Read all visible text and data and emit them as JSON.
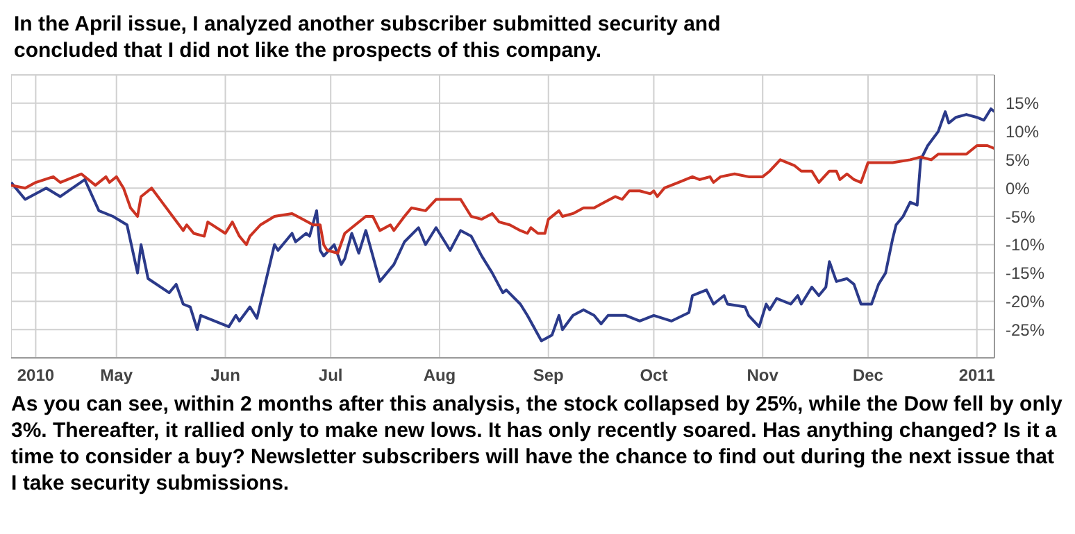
{
  "chart_data": {
    "type": "line",
    "title": "In the April issue, I analyzed another subscriber submitted security and concluded that I did not like the prospects of this company.",
    "annotations": [
      "As you can see, within 2 months after this analysis, the stock collapsed by 25%, while the Dow fell by only 3%. Thereafter, it rallied only to make new lows. It has only recently soared. Has anything changed? Is it a time to consider a buy? Newsletter subscribers will have the chance to find out during the next issue that I take security submissions."
    ],
    "series": [
      {
        "color": "#2b3a8a",
        "x": [
          "2010-04-01",
          "2010-04-05",
          "2010-04-11",
          "2010-04-15",
          "2010-04-22",
          "2010-04-26",
          "2010-04-30",
          "2010-05-04",
          "2010-05-07",
          "2010-05-08",
          "2010-05-10",
          "2010-05-16",
          "2010-05-18",
          "2010-05-20",
          "2010-05-22",
          "2010-05-24",
          "2010-05-25",
          "2010-06-02",
          "2010-06-04",
          "2010-06-05",
          "2010-06-08",
          "2010-06-10",
          "2010-06-15",
          "2010-06-16",
          "2010-06-20",
          "2010-06-21",
          "2010-06-24",
          "2010-06-25",
          "2010-06-27",
          "2010-06-28",
          "2010-06-29",
          "2010-07-02",
          "2010-07-04",
          "2010-07-05",
          "2010-07-07",
          "2010-07-09",
          "2010-07-11",
          "2010-07-15",
          "2010-07-19",
          "2010-07-22",
          "2010-07-26",
          "2010-07-28",
          "2010-07-31",
          "2010-08-04",
          "2010-08-07",
          "2010-08-10",
          "2010-08-13",
          "2010-08-16",
          "2010-08-19",
          "2010-08-20",
          "2010-08-24",
          "2010-08-26",
          "2010-08-30",
          "2010-09-02",
          "2010-09-04",
          "2010-09-05",
          "2010-09-08",
          "2010-09-11",
          "2010-09-14",
          "2010-09-16",
          "2010-09-18",
          "2010-09-23",
          "2010-09-27",
          "2010-10-01",
          "2010-10-06",
          "2010-10-11",
          "2010-10-12",
          "2010-10-14",
          "2010-10-16",
          "2010-10-18",
          "2010-10-21",
          "2010-10-22",
          "2010-10-27",
          "2010-10-28",
          "2010-10-31",
          "2010-11-02",
          "2010-11-03",
          "2010-11-05",
          "2010-11-09",
          "2010-11-11",
          "2010-11-12",
          "2010-11-15",
          "2010-11-17",
          "2010-11-19",
          "2010-11-20",
          "2010-11-22",
          "2010-11-25",
          "2010-11-27",
          "2010-11-29",
          "2010-12-02",
          "2010-12-04",
          "2010-12-06",
          "2010-12-08",
          "2010-12-09",
          "2010-12-11",
          "2010-12-13",
          "2010-12-15",
          "2010-12-16",
          "2010-12-18",
          "2010-12-21",
          "2010-12-23",
          "2010-12-24",
          "2010-12-26",
          "2010-12-29",
          "2011-01-01",
          "2011-01-03",
          "2011-01-05",
          "2011-01-06"
        ],
        "values": [
          1,
          -2,
          0,
          -1.5,
          1.5,
          -4,
          -5,
          -6.5,
          -15,
          -10,
          -16,
          -18.5,
          -17,
          -20.5,
          -21,
          -25,
          -22.5,
          -24.5,
          -22.5,
          -23.5,
          -21,
          -23,
          -10,
          -11,
          -8,
          -9.5,
          -8,
          -8.5,
          -4,
          -11,
          -12,
          -10,
          -13.5,
          -12.5,
          -8,
          -11.5,
          -7.5,
          -16.5,
          -13.5,
          -9.5,
          -7,
          -10,
          -7,
          -11,
          -7.5,
          -8.5,
          -12,
          -15,
          -18.5,
          -18,
          -20.5,
          -22.5,
          -27,
          -26,
          -22.5,
          -25,
          -22.5,
          -21.5,
          -22.5,
          -24,
          -22.5,
          -22.5,
          -23.5,
          -22.5,
          -23.5,
          -22,
          -19,
          -18.5,
          -18,
          -20.5,
          -19,
          -20.5,
          -21,
          -22.5,
          -24.5,
          -20.5,
          -21.5,
          -19.5,
          -20.5,
          -19,
          -20.5,
          -17.5,
          -19,
          -17.5,
          -13,
          -16.5,
          -16,
          -17,
          -20.5,
          -20.5,
          -17,
          -15,
          -9,
          -6.5,
          -5,
          -2.5,
          -3,
          5,
          7.5,
          10,
          13.5,
          11.5,
          12.5,
          13,
          12.5,
          12,
          14,
          13.5
        ]
      },
      {
        "color": "#cc3322",
        "x": [
          "2010-04-01",
          "2010-04-05",
          "2010-04-08",
          "2010-04-13",
          "2010-04-15",
          "2010-04-21",
          "2010-04-25",
          "2010-04-28",
          "2010-04-29",
          "2010-05-01",
          "2010-05-03",
          "2010-05-05",
          "2010-05-07",
          "2010-05-08",
          "2010-05-11",
          "2010-05-14",
          "2010-05-20",
          "2010-05-21",
          "2010-05-23",
          "2010-05-26",
          "2010-05-27",
          "2010-06-01",
          "2010-06-03",
          "2010-06-05",
          "2010-06-07",
          "2010-06-08",
          "2010-06-11",
          "2010-06-15",
          "2010-06-20",
          "2010-06-23",
          "2010-06-26",
          "2010-06-28",
          "2010-06-29",
          "2010-06-30",
          "2010-07-03",
          "2010-07-05",
          "2010-07-08",
          "2010-07-11",
          "2010-07-13",
          "2010-07-15",
          "2010-07-18",
          "2010-07-19",
          "2010-07-22",
          "2010-07-24",
          "2010-07-28",
          "2010-07-31",
          "2010-08-05",
          "2010-08-07",
          "2010-08-10",
          "2010-08-13",
          "2010-08-16",
          "2010-08-18",
          "2010-08-21",
          "2010-08-24",
          "2010-08-26",
          "2010-08-27",
          "2010-08-29",
          "2010-08-31",
          "2010-09-01",
          "2010-09-04",
          "2010-09-05",
          "2010-09-08",
          "2010-09-11",
          "2010-09-14",
          "2010-09-17",
          "2010-09-20",
          "2010-09-22",
          "2010-09-24",
          "2010-09-27",
          "2010-09-30",
          "2010-10-01",
          "2010-10-02",
          "2010-10-04",
          "2010-10-06",
          "2010-10-08",
          "2010-10-12",
          "2010-10-14",
          "2010-10-17",
          "2010-10-18",
          "2010-10-20",
          "2010-10-24",
          "2010-10-28",
          "2010-11-01",
          "2010-11-03",
          "2010-11-06",
          "2010-11-10",
          "2010-11-12",
          "2010-11-15",
          "2010-11-17",
          "2010-11-20",
          "2010-11-22",
          "2010-11-23",
          "2010-11-25",
          "2010-11-27",
          "2010-11-29",
          "2010-12-01",
          "2010-12-04",
          "2010-12-08",
          "2010-12-13",
          "2010-12-16",
          "2010-12-19",
          "2010-12-21",
          "2010-12-29",
          "2011-01-01",
          "2011-01-04",
          "2011-01-06"
        ],
        "values": [
          0.5,
          0,
          1,
          2,
          1,
          2.5,
          0.5,
          2,
          1,
          2,
          0,
          -3.5,
          -5,
          -1.5,
          0,
          -2.5,
          -7.5,
          -6.5,
          -8,
          -8.5,
          -6,
          -8,
          -6,
          -8.5,
          -10,
          -8.5,
          -6.5,
          -5,
          -4.5,
          -5.5,
          -6.5,
          -6.5,
          -10,
          -11,
          -11.5,
          -8,
          -6.5,
          -5,
          -5,
          -7.5,
          -6.5,
          -7.5,
          -5,
          -3.5,
          -4,
          -2,
          -2,
          -2,
          -5,
          -5.5,
          -4.5,
          -6,
          -6.5,
          -7.5,
          -8,
          -7,
          -8,
          -8,
          -5.5,
          -4,
          -5,
          -4.5,
          -3.5,
          -3.5,
          -2.5,
          -1.5,
          -2,
          -0.5,
          -0.5,
          -1,
          -0.5,
          -1.5,
          0,
          0.5,
          1,
          2,
          1.5,
          2,
          1,
          2,
          2.5,
          2,
          2,
          3,
          5,
          4,
          3,
          3,
          1,
          3,
          3,
          1.5,
          2.5,
          1.5,
          1,
          4.5,
          4.5,
          4.5,
          5,
          5.5,
          5,
          6,
          6,
          7.5,
          7.5,
          7
        ]
      }
    ],
    "xlim": [
      "2010-04-01",
      "2011-01-06"
    ],
    "xticks": [
      {
        "value": "2010-04-08",
        "label": "2010"
      },
      {
        "value": "2010-05-01",
        "label": "May"
      },
      {
        "value": "2010-06-01",
        "label": "Jun"
      },
      {
        "value": "2010-07-01",
        "label": "Jul"
      },
      {
        "value": "2010-08-01",
        "label": "Aug"
      },
      {
        "value": "2010-09-01",
        "label": "Sep"
      },
      {
        "value": "2010-10-01",
        "label": "Oct"
      },
      {
        "value": "2010-11-01",
        "label": "Nov"
      },
      {
        "value": "2010-12-01",
        "label": "Dec"
      },
      {
        "value": "2011-01-01",
        "label": "2011"
      }
    ],
    "ylim": [
      -30,
      20
    ],
    "yticks": [
      {
        "value": 15,
        "label": "15%"
      },
      {
        "value": 10,
        "label": "10%"
      },
      {
        "value": 5,
        "label": "5%"
      },
      {
        "value": 0,
        "label": "0%"
      },
      {
        "value": -5,
        "label": "-5%"
      },
      {
        "value": -10,
        "label": "-10%"
      },
      {
        "value": -15,
        "label": "-15%"
      },
      {
        "value": -20,
        "label": "-20%"
      },
      {
        "value": -25,
        "label": "-25%"
      }
    ],
    "grid": true,
    "marker": "none",
    "line_style": "solid"
  }
}
